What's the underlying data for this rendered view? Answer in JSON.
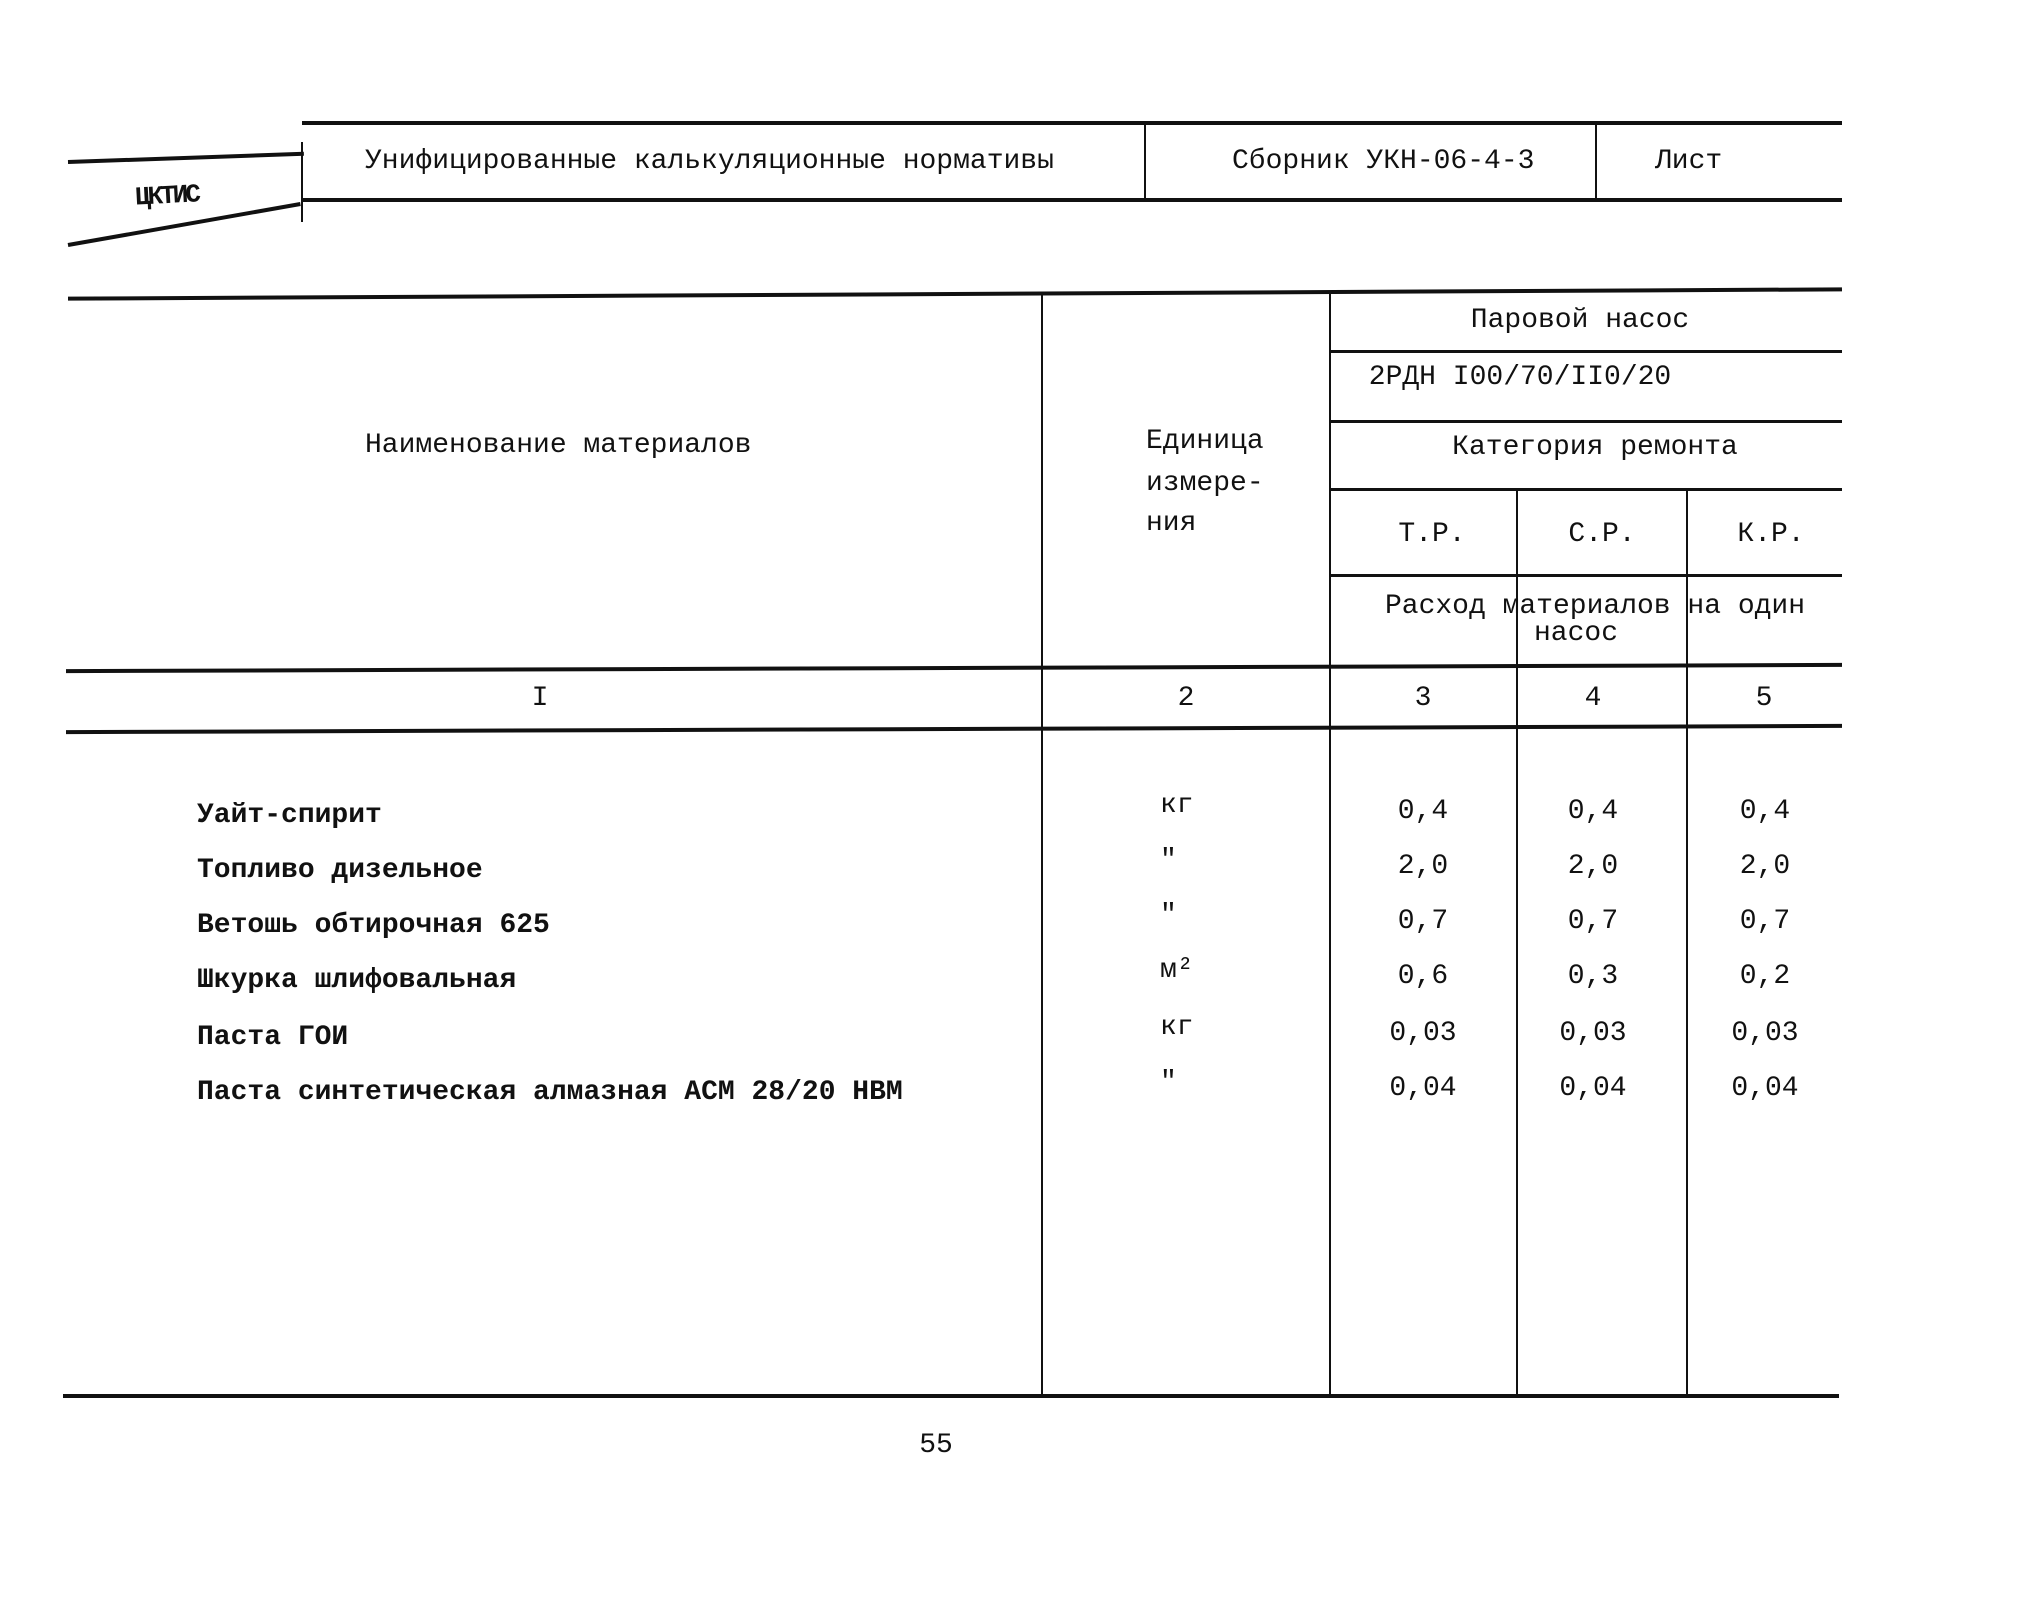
{
  "header": {
    "org": "ЦКТИС",
    "title": "Унифицированные калькуляционные нормативы",
    "collection": "Сборник УКН-06-4-3",
    "sheet_label": "Лист"
  },
  "table": {
    "col_name_header": "Наименование материалов",
    "col_unit_header": [
      "Единица",
      "измере-",
      "ния"
    ],
    "group_header": "Паровой насос",
    "model": "2РДН I00/70/II0/20",
    "category_header": "Категория ремонта",
    "categories": [
      "Т.Р.",
      "С.Р.",
      "К.Р."
    ],
    "consumption_header": [
      "Расход материалов на один",
      "насос"
    ],
    "column_numbers": [
      "I",
      "2",
      "3",
      "4",
      "5"
    ],
    "rows": [
      {
        "name": "Уайт-спирит",
        "unit": "кг",
        "values": [
          "0,4",
          "0,4",
          "0,4"
        ]
      },
      {
        "name": "Топливо дизельное",
        "unit": "\"",
        "values": [
          "2,0",
          "2,0",
          "2,0"
        ]
      },
      {
        "name": "Ветошь обтирочная 625",
        "unit": "\"",
        "values": [
          "0,7",
          "0,7",
          "0,7"
        ]
      },
      {
        "name": "Шкурка шлифовальная",
        "unit": "м²",
        "values": [
          "0,6",
          "0,3",
          "0,2"
        ]
      },
      {
        "name": "Паста ГОИ",
        "unit": "кг",
        "values": [
          "0,03",
          "0,03",
          "0,03"
        ]
      },
      {
        "name": "Паста синтетическая алмазная АСМ 28/20 НВМ",
        "unit": "\"",
        "values": [
          "0,04",
          "0,04",
          "0,04"
        ]
      }
    ]
  },
  "page_number": "55"
}
